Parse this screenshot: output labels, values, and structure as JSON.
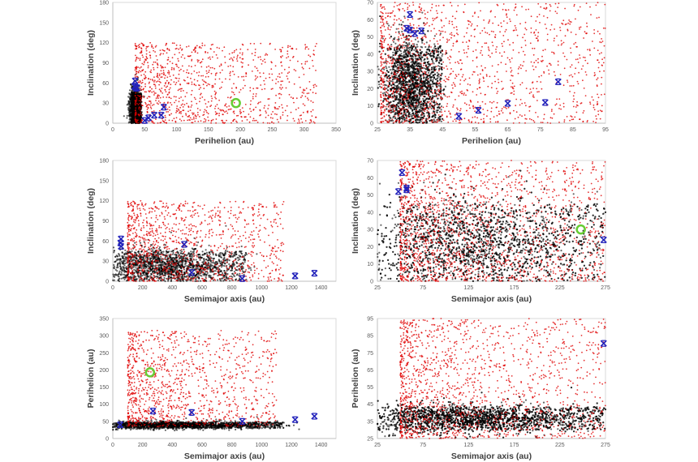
{
  "chart_data": [
    {
      "id": "q_i_full",
      "type": "scatter",
      "title": "",
      "xlabel": "Perihelion (au)",
      "ylabel": "Inclination (deg)",
      "xlim": [
        0,
        350
      ],
      "ylim": [
        0,
        180
      ],
      "xticks": [
        0,
        50,
        100,
        150,
        200,
        250,
        300,
        350
      ],
      "yticks": [
        0,
        30,
        60,
        90,
        120,
        150,
        180
      ],
      "grid": false,
      "series": [
        {
          "name": "population-black",
          "color": "#000000",
          "marker": "dot",
          "cluster": {
            "x": [
              30,
              45
            ],
            "y": [
              0,
              50
            ],
            "count": 1800
          }
        },
        {
          "name": "population-red",
          "color": "#e00000",
          "marker": "dot",
          "cluster": {
            "x": [
              35,
              320
            ],
            "y": [
              0,
              120
            ],
            "count": 1100
          }
        },
        {
          "name": "known-objects",
          "color": "#2222bb",
          "marker": "x",
          "points": [
            [
              35,
              63
            ],
            [
              34,
              55
            ],
            [
              35,
              54
            ],
            [
              37,
              52
            ],
            [
              38,
              53
            ],
            [
              50,
              4
            ],
            [
              56,
              8
            ],
            [
              65,
              12
            ],
            [
              76,
              12
            ],
            [
              80,
              24
            ]
          ]
        },
        {
          "name": "highlighted-object",
          "color": "#66cc33",
          "marker": "circle",
          "points": [
            [
              193,
              30
            ]
          ]
        }
      ]
    },
    {
      "id": "q_i_zoom",
      "type": "scatter",
      "title": "",
      "xlabel": "Perihelion (au)",
      "ylabel": "Inclination (deg)",
      "xlim": [
        25,
        95
      ],
      "ylim": [
        0,
        70
      ],
      "xticks": [
        25,
        35,
        45,
        55,
        65,
        75,
        85,
        95
      ],
      "yticks": [
        0,
        10,
        20,
        30,
        40,
        50,
        60,
        70
      ],
      "grid": false,
      "series": [
        {
          "name": "population-black",
          "color": "#000000",
          "marker": "dot",
          "cluster": {
            "x": [
              30,
              45
            ],
            "y": [
              0,
              50
            ],
            "count": 2600
          }
        },
        {
          "name": "population-red",
          "color": "#e00000",
          "marker": "dot",
          "cluster": {
            "x": [
              26,
              95
            ],
            "y": [
              0,
              70
            ],
            "count": 1400
          }
        },
        {
          "name": "known-objects",
          "color": "#2222bb",
          "marker": "x",
          "points": [
            [
              35,
              63
            ],
            [
              34,
              55
            ],
            [
              35,
              54
            ],
            [
              36.5,
              52
            ],
            [
              38.5,
              53.5
            ],
            [
              50,
              4
            ],
            [
              56,
              7.5
            ],
            [
              65,
              11.5
            ],
            [
              76.5,
              12
            ],
            [
              80.5,
              24
            ]
          ]
        }
      ]
    },
    {
      "id": "a_i_full",
      "type": "scatter",
      "title": "",
      "xlabel": "Semimajor axis (au)",
      "ylabel": "Inclination (deg)",
      "xlim": [
        0,
        1500
      ],
      "ylim": [
        0,
        180
      ],
      "xticks": [
        0,
        200,
        400,
        600,
        800,
        1000,
        1200,
        1400
      ],
      "yticks": [
        0,
        30,
        60,
        90,
        120,
        150,
        180
      ],
      "grid": false,
      "series": [
        {
          "name": "population-black",
          "color": "#000000",
          "marker": "dot",
          "cluster": {
            "x": [
              50,
              900
            ],
            "y": [
              0,
              50
            ],
            "count": 2000
          }
        },
        {
          "name": "population-red",
          "color": "#e00000",
          "marker": "dot",
          "cluster": {
            "x": [
              100,
              1150
            ],
            "y": [
              0,
              120
            ],
            "count": 1100
          }
        },
        {
          "name": "known-objects",
          "color": "#2222bb",
          "marker": "x",
          "points": [
            [
              55,
              63
            ],
            [
              52,
              57
            ],
            [
              55,
              52
            ],
            [
              480,
              55
            ],
            [
              530,
              13
            ],
            [
              870,
              4
            ],
            [
              1225,
              8
            ],
            [
              1355,
              12
            ]
          ]
        }
      ]
    },
    {
      "id": "a_i_zoom",
      "type": "scatter",
      "title": "",
      "xlabel": "Semimajor axis (au)",
      "ylabel": "Inclination (deg)",
      "xlim": [
        25,
        275
      ],
      "ylim": [
        0,
        70
      ],
      "xticks": [
        25,
        75,
        125,
        175,
        225,
        275
      ],
      "yticks": [
        0,
        10,
        20,
        30,
        40,
        50,
        60,
        70
      ],
      "grid": false,
      "series": [
        {
          "name": "population-black",
          "color": "#000000",
          "marker": "dot",
          "cluster": {
            "x": [
              50,
              275
            ],
            "y": [
              0,
              50
            ],
            "count": 3200
          }
        },
        {
          "name": "population-red",
          "color": "#e00000",
          "marker": "dot",
          "cluster": {
            "x": [
              50,
              275
            ],
            "y": [
              0,
              70
            ],
            "count": 1700
          }
        },
        {
          "name": "known-objects",
          "color": "#2222bb",
          "marker": "x",
          "points": [
            [
              52,
              63
            ],
            [
              48,
              52
            ],
            [
              57,
              54
            ],
            [
              57,
              53
            ],
            [
              273,
              24
            ]
          ]
        },
        {
          "name": "highlighted-object",
          "color": "#66cc33",
          "marker": "circle",
          "points": [
            [
              248,
              30
            ]
          ]
        }
      ]
    },
    {
      "id": "a_q_full",
      "type": "scatter",
      "title": "",
      "xlabel": "Semimajor axis (au)",
      "ylabel": "Perihelion (au)",
      "xlim": [
        0,
        1500
      ],
      "ylim": [
        0,
        350
      ],
      "xticks": [
        0,
        200,
        400,
        600,
        800,
        1000,
        1200,
        1400
      ],
      "yticks": [
        0,
        50,
        100,
        150,
        200,
        250,
        300,
        350
      ],
      "grid": false,
      "series": [
        {
          "name": "population-black",
          "color": "#000000",
          "marker": "dot",
          "cluster": {
            "x": [
              50,
              1150
            ],
            "y": [
              30,
              50
            ],
            "count": 2000
          }
        },
        {
          "name": "population-red",
          "color": "#e00000",
          "marker": "dot",
          "cluster": {
            "x": [
              100,
              1100
            ],
            "y": [
              35,
              315
            ],
            "count": 1100
          }
        },
        {
          "name": "known-objects",
          "color": "#2222bb",
          "marker": "x",
          "points": [
            [
              50,
              40
            ],
            [
              270,
              80
            ],
            [
              530,
              76
            ],
            [
              870,
              50
            ],
            [
              1225,
              55
            ],
            [
              1355,
              65
            ]
          ]
        },
        {
          "name": "highlighted-object",
          "color": "#66cc33",
          "marker": "circle",
          "points": [
            [
              250,
              193
            ]
          ]
        }
      ]
    },
    {
      "id": "a_q_zoom",
      "type": "scatter",
      "title": "",
      "xlabel": "Semimajor axis (au)",
      "ylabel": "Perihelion (au)",
      "xlim": [
        25,
        275
      ],
      "ylim": [
        25,
        95
      ],
      "xticks": [
        25,
        75,
        125,
        175,
        225,
        275
      ],
      "yticks": [
        25,
        35,
        45,
        55,
        65,
        75,
        85,
        95
      ],
      "grid": false,
      "series": [
        {
          "name": "population-black",
          "color": "#000000",
          "marker": "dot",
          "cluster": {
            "x": [
              48,
              275
            ],
            "y": [
              30,
              45
            ],
            "count": 3200
          }
        },
        {
          "name": "population-red",
          "color": "#e00000",
          "marker": "dot",
          "cluster": {
            "x": [
              50,
              275
            ],
            "y": [
              25,
              95
            ],
            "count": 1500
          }
        },
        {
          "name": "known-objects",
          "color": "#2222bb",
          "marker": "x",
          "points": [
            [
              273,
              80.5
            ]
          ]
        }
      ]
    }
  ]
}
